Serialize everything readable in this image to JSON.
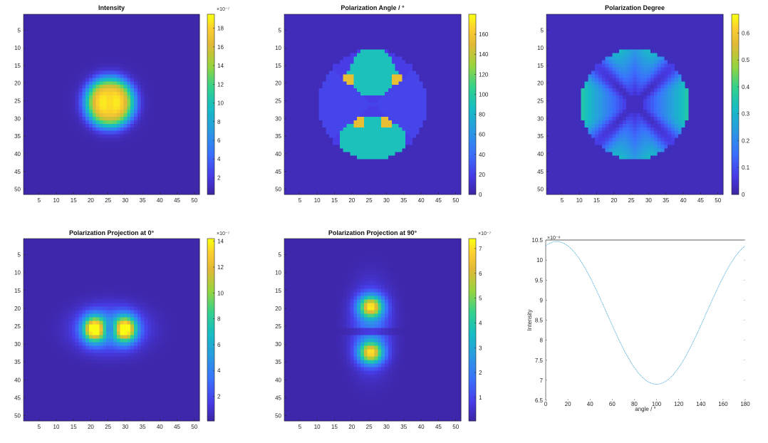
{
  "chart_data": [
    {
      "type": "heatmap",
      "title": "Intensity",
      "field": "intensity",
      "x_ticks": [
        5,
        10,
        15,
        20,
        25,
        30,
        35,
        40,
        45,
        50
      ],
      "y_ticks": [
        5,
        10,
        15,
        20,
        25,
        30,
        35,
        40,
        45,
        50
      ],
      "xlim": [
        0.5,
        51.5
      ],
      "ylim": [
        0.5,
        51.5
      ],
      "y_direction": "reverse",
      "colorbar": {
        "ticks": [
          2,
          4,
          6,
          8,
          10,
          12,
          14,
          16,
          18
        ],
        "tick_labels": [
          "2",
          "4",
          "6",
          "8",
          "10",
          "12",
          "14",
          "16",
          "18"
        ],
        "range": [
          0.2,
          19.5
        ],
        "exponent_label": "×10⁻⁷"
      },
      "colormap": "parula"
    },
    {
      "type": "heatmap",
      "title": "Polarization Angle / °",
      "field": "polarization_angle",
      "x_ticks": [
        5,
        10,
        15,
        20,
        25,
        30,
        35,
        40,
        45,
        50
      ],
      "y_ticks": [
        5,
        10,
        15,
        20,
        25,
        30,
        35,
        40,
        45,
        50
      ],
      "xlim": [
        0.5,
        51.5
      ],
      "ylim": [
        0.5,
        51.5
      ],
      "y_direction": "reverse",
      "colorbar": {
        "ticks": [
          0,
          20,
          40,
          60,
          80,
          100,
          120,
          140,
          160
        ],
        "tick_labels": [
          "0",
          "20",
          "40",
          "60",
          "80",
          "100",
          "120",
          "140",
          "160"
        ],
        "range": [
          0,
          180
        ],
        "exponent_label": ""
      },
      "colormap": "parula"
    },
    {
      "type": "heatmap",
      "title": "Polarization Degree",
      "field": "polarization_degree",
      "x_ticks": [
        5,
        10,
        15,
        20,
        25,
        30,
        35,
        40,
        45,
        50
      ],
      "y_ticks": [
        5,
        10,
        15,
        20,
        25,
        30,
        35,
        40,
        45,
        50
      ],
      "xlim": [
        0.5,
        51.5
      ],
      "ylim": [
        0.5,
        51.5
      ],
      "y_direction": "reverse",
      "colorbar": {
        "ticks": [
          0,
          0.1,
          0.2,
          0.3,
          0.4,
          0.5,
          0.6
        ],
        "tick_labels": [
          "0",
          "0.1",
          "0.2",
          "0.3",
          "0.4",
          "0.5",
          "0.6"
        ],
        "range": [
          0,
          0.67
        ],
        "exponent_label": ""
      },
      "colormap": "parula"
    },
    {
      "type": "heatmap",
      "title": "Polarization Projection at 0°",
      "field": "projection_0",
      "x_ticks": [
        5,
        10,
        15,
        20,
        25,
        30,
        35,
        40,
        45,
        50
      ],
      "y_ticks": [
        5,
        10,
        15,
        20,
        25,
        30,
        35,
        40,
        45,
        50
      ],
      "xlim": [
        0.5,
        51.5
      ],
      "ylim": [
        0.5,
        51.5
      ],
      "y_direction": "reverse",
      "colorbar": {
        "ticks": [
          2,
          4,
          6,
          8,
          10,
          12,
          14
        ],
        "tick_labels": [
          "2",
          "4",
          "6",
          "8",
          "10",
          "12",
          "14"
        ],
        "range": [
          0.1,
          14.2
        ],
        "exponent_label": "×10⁻⁷"
      },
      "colormap": "parula"
    },
    {
      "type": "heatmap",
      "title": "Polarization Projection at 90°",
      "field": "projection_90",
      "x_ticks": [
        5,
        10,
        15,
        20,
        25,
        30,
        35,
        40,
        45,
        50
      ],
      "y_ticks": [
        5,
        10,
        15,
        20,
        25,
        30,
        35,
        40,
        45,
        50
      ],
      "xlim": [
        0.5,
        51.5
      ],
      "ylim": [
        0.5,
        51.5
      ],
      "y_direction": "reverse",
      "colorbar": {
        "ticks": [
          1,
          2,
          3,
          4,
          5,
          6,
          7
        ],
        "tick_labels": [
          "1",
          "2",
          "3",
          "4",
          "5",
          "6",
          "7"
        ],
        "range": [
          0.05,
          7.4
        ],
        "exponent_label": "×10⁻⁷"
      },
      "colormap": "parula"
    },
    {
      "type": "line",
      "title": "",
      "xlabel": "angle / °",
      "ylabel": "Intensity",
      "xlim": [
        0,
        180
      ],
      "ylim": [
        6.5,
        10.5
      ],
      "x_ticks": [
        0,
        20,
        40,
        60,
        80,
        100,
        120,
        140,
        160,
        180
      ],
      "y_ticks": [
        6.5,
        7,
        7.5,
        8,
        8.5,
        9,
        9.5,
        10,
        10.5
      ],
      "y_tick_labels": [
        "6.5",
        "7",
        "7.5",
        "8",
        "8.5",
        "9",
        "9.5",
        "10",
        "10.5"
      ],
      "y_exponent_label": "×10⁻⁸",
      "series": [
        {
          "name": "intensity",
          "x_start": 0,
          "x_end": 180,
          "x_step": 1,
          "model": "mean + amplitude*cos(2*(angle - peak_angle))",
          "mean": 8.68,
          "amplitude": 1.78,
          "peak_angle": 10,
          "color": "#4aa8d8"
        }
      ]
    }
  ]
}
